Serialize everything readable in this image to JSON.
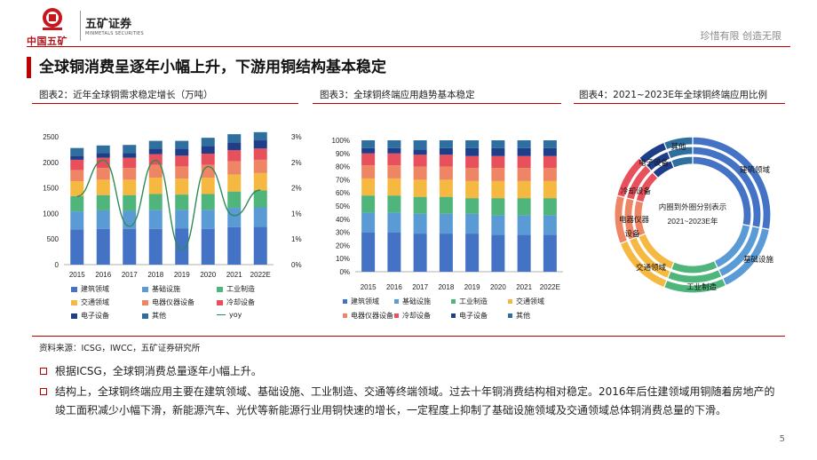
{
  "header": {
    "logo_cn": "中国五矿",
    "brand_name": "五矿证券",
    "brand_en": "MINMETALS SECURITIES",
    "slogan": "珍惜有限  创造无限"
  },
  "page": {
    "title": "全球铜消费呈逐年小幅上升，下游用铜结构基本稳定",
    "number": "5"
  },
  "colors": {
    "accent": "#c00000",
    "建筑领域": "#4472c4",
    "基础设施": "#5b9bd5",
    "工业制造": "#4fb57a",
    "交通领域": "#f5b942",
    "电器仪器设备": "#ee8564",
    "冷却设备": "#e8505b",
    "电子设备": "#1f3e8a",
    "其他": "#2f6f9f",
    "yoy": "#2e8b57"
  },
  "figures": {
    "fig1_caption": "图表2：近年全球铜需求稳定增长（万吨）",
    "fig2_caption": "图表3：全球铜终端应用趋势基本稳定",
    "fig3_caption": "图表4：2021~2023E年全球铜终端应用比例"
  },
  "chart_data": [
    {
      "type": "bar",
      "stacked": true,
      "categories": [
        "2015",
        "2016",
        "2017",
        "2018",
        "2019",
        "2020",
        "2021",
        "2022E"
      ],
      "series": [
        {
          "name": "建筑领域",
          "values": [
            690,
            700,
            700,
            700,
            710,
            700,
            730,
            740
          ]
        },
        {
          "name": "基础设施",
          "values": [
            350,
            360,
            350,
            370,
            360,
            370,
            380,
            380
          ]
        },
        {
          "name": "工业制造",
          "values": [
            300,
            300,
            310,
            310,
            300,
            310,
            320,
            330
          ]
        },
        {
          "name": "交通领域",
          "values": [
            290,
            300,
            300,
            320,
            310,
            320,
            330,
            340
          ]
        },
        {
          "name": "电器仪器设备",
          "values": [
            220,
            230,
            230,
            250,
            240,
            250,
            260,
            260
          ]
        },
        {
          "name": "冷却设备",
          "values": [
            200,
            200,
            200,
            210,
            210,
            220,
            220,
            220
          ]
        },
        {
          "name": "电子设备",
          "values": [
            80,
            90,
            90,
            110,
            140,
            150,
            150,
            160
          ]
        },
        {
          "name": "其他",
          "values": [
            150,
            150,
            160,
            150,
            150,
            160,
            160,
            160
          ]
        }
      ],
      "line_series": {
        "name": "yoy",
        "values": [
          1.6,
          2.45,
          0.9,
          2.45,
          0.35,
          2.3,
          1.15,
          1.75
        ]
      },
      "ylim": [
        0,
        2500
      ],
      "yticks": [
        "0",
        "500",
        "1000",
        "1500",
        "2000",
        "2500"
      ],
      "y2lim": [
        0,
        3
      ],
      "y2ticks": [
        "0%",
        "1%",
        "1%",
        "2%",
        "2%",
        "3%"
      ]
    },
    {
      "type": "bar",
      "stacked": true,
      "percent": true,
      "categories": [
        "2015",
        "2016",
        "2017",
        "2018",
        "2019",
        "2020",
        "2021",
        "2022E"
      ],
      "series": [
        {
          "name": "建筑领域",
          "values": [
            30,
            30,
            29,
            29,
            29,
            28,
            28,
            28
          ]
        },
        {
          "name": "基础设施",
          "values": [
            15,
            15,
            15,
            15,
            15,
            15,
            15,
            15
          ]
        },
        {
          "name": "工业制造",
          "values": [
            13,
            13,
            13,
            13,
            12,
            13,
            13,
            13
          ]
        },
        {
          "name": "交通领域",
          "values": [
            13,
            13,
            13,
            13,
            13,
            13,
            13,
            13
          ]
        },
        {
          "name": "电器仪器设备",
          "values": [
            10,
            10,
            10,
            10,
            10,
            10,
            10,
            10
          ]
        },
        {
          "name": "冷却设备",
          "values": [
            9,
            9,
            9,
            9,
            9,
            9,
            9,
            9
          ]
        },
        {
          "name": "电子设备",
          "values": [
            4,
            4,
            4,
            5,
            6,
            6,
            6,
            6
          ]
        },
        {
          "name": "其他",
          "values": [
            6,
            6,
            7,
            6,
            6,
            6,
            6,
            6
          ]
        }
      ],
      "ylim": [
        0,
        100
      ],
      "yticks": [
        "0%",
        "10%",
        "20%",
        "30%",
        "40%",
        "50%",
        "60%",
        "70%",
        "80%",
        "90%",
        "100%"
      ]
    },
    {
      "type": "pie",
      "donut": true,
      "rings": [
        "2021",
        "2022",
        "2023E"
      ],
      "center_text": [
        "内圈到外圈分别表示",
        "2021~2023E年"
      ],
      "slices": [
        {
          "name": "建筑领域",
          "value": 28
        },
        {
          "name": "基础设施",
          "value": 15
        },
        {
          "name": "工业制造",
          "value": 13
        },
        {
          "name": "交通领域",
          "value": 13
        },
        {
          "name": "电器仪器设备",
          "value": 10
        },
        {
          "name": "冷却设备",
          "value": 9
        },
        {
          "name": "电子设备",
          "value": 6
        },
        {
          "name": "其他",
          "value": 6
        }
      ],
      "labels": [
        "建筑领域",
        "基础设施",
        "工业制造",
        "交通领域",
        "电器仪器",
        "设备",
        "冷却设备",
        "电子设备",
        "其他"
      ]
    }
  ],
  "legend1": [
    "建筑领域",
    "基础设施",
    "工业制造",
    "交通领域",
    "电器仪器设备",
    "冷却设备",
    "电子设备",
    "其他",
    "yoy"
  ],
  "legend2": [
    "建筑领域",
    "基础设施",
    "工业制造",
    "交通领域",
    "电器仪器设备",
    "冷却设备",
    "电子设备",
    "其他"
  ],
  "source": "资料来源：ICSG，IWCC，五矿证券研究所",
  "bullets": [
    "根据ICSG，全球铜消费总量逐年小幅上升。",
    "结构上，全球铜终端应用主要在建筑领域、基础设施、工业制造、交通等终端领域。过去十年铜消费结构相对稳定。2016年后住建领域用铜随着房地产的竣工面积减少小幅下滑，新能源汽车、光伏等新能源行业用铜快速的增长，一定程度上抑制了基础设施领域及交通领域总体铜消费总量的下滑。"
  ]
}
